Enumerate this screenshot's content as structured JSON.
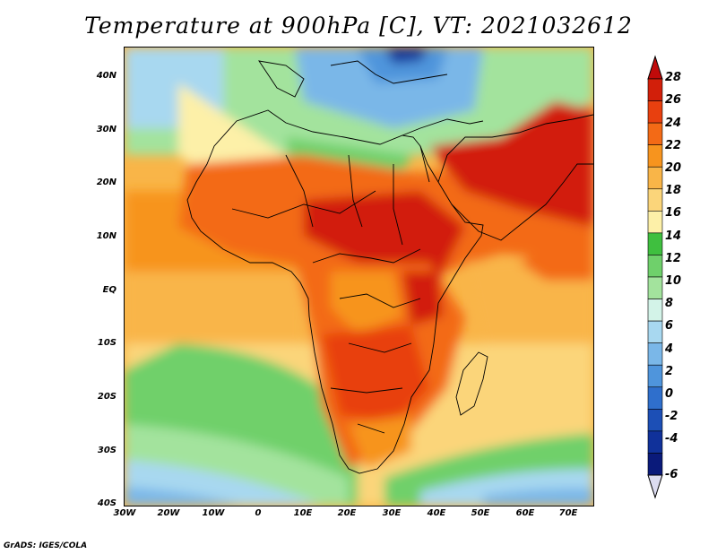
{
  "title": "Temperature at 900hPa [C], VT: 2021032612",
  "credit": "GrADS: IGES/COLA",
  "map": {
    "lat_labels": [
      "40N",
      "30N",
      "20N",
      "10N",
      "EQ",
      "10S",
      "20S",
      "30S",
      "40S"
    ],
    "lon_labels": [
      "30W",
      "20W",
      "10W",
      "0",
      "10E",
      "20E",
      "30E",
      "40E",
      "50E",
      "60E",
      "70E"
    ],
    "lat_range": [
      -40,
      45
    ],
    "lon_range": [
      -30,
      75
    ]
  },
  "colorbar": {
    "labels": [
      "28",
      "26",
      "24",
      "22",
      "20",
      "18",
      "16",
      "14",
      "12",
      "10",
      "8",
      "6",
      "4",
      "2",
      "0",
      "-2",
      "-4",
      "-6"
    ],
    "colors": [
      "#d21f0a",
      "#e8400f",
      "#f36a16",
      "#f7941e",
      "#f9b548",
      "#fbd57a",
      "#fdf0a8",
      "#3fbf3f",
      "#6fd06b",
      "#a3e39d",
      "#d3f3e8",
      "#a8d8f0",
      "#7ab7e8",
      "#4f95dc",
      "#2f6fcc",
      "#1c4fb6",
      "#10319a",
      "#0a1a7a"
    ],
    "over_color": "#c00a0a",
    "under_color": "#dcdcf0"
  }
}
